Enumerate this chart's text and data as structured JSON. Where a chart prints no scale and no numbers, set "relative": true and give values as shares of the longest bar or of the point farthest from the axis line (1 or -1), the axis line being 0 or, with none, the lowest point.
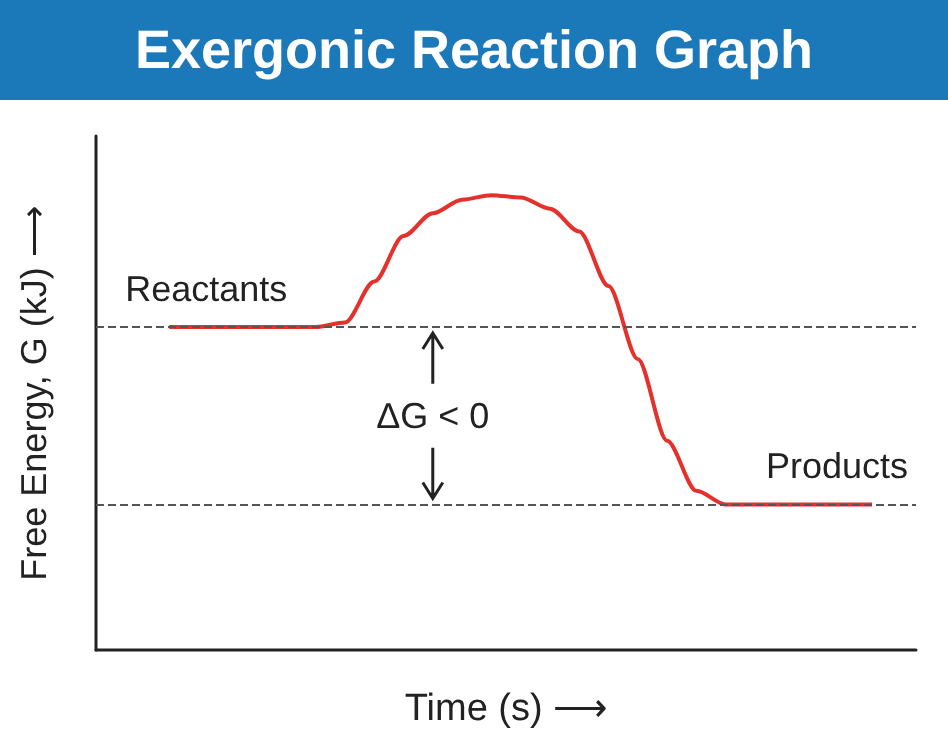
{
  "chart_data": {
    "type": "line",
    "title": "Exergonic Reaction Graph",
    "xlabel": "Time (s) ⟶",
    "ylabel": "Free Energy, G (kJ) ⟶",
    "relative": true,
    "marker": "none",
    "grid": false,
    "categories": [
      null,
      null,
      null,
      null,
      null,
      null,
      null,
      null,
      null,
      null,
      null,
      null,
      null,
      null,
      null,
      null,
      null,
      null,
      null,
      null,
      null,
      null,
      null,
      null,
      null,
      null,
      null,
      null
    ],
    "series": [
      {
        "color": "#e5312c",
        "values": [
          null,
          null,
          0.71,
          0.71,
          0.71,
          0.71,
          0.71,
          0.71,
          0.72,
          0.81,
          0.91,
          0.96,
          0.99,
          1,
          0.995,
          0.97,
          0.92,
          0.8,
          0.64,
          0.46,
          0.35,
          0.32,
          0.32,
          0.32,
          0.32,
          0.32,
          0.32,
          null
        ]
      }
    ],
    "ref_lines": [
      {
        "axis": "y",
        "value": 0.71,
        "color": "#555555",
        "line_style": "dashed"
      },
      {
        "axis": "y",
        "value": 0.32,
        "color": "#555555",
        "line_style": "dashed"
      }
    ],
    "annotations": [
      "Reactants",
      "Products",
      "ΔG < 0"
    ]
  }
}
